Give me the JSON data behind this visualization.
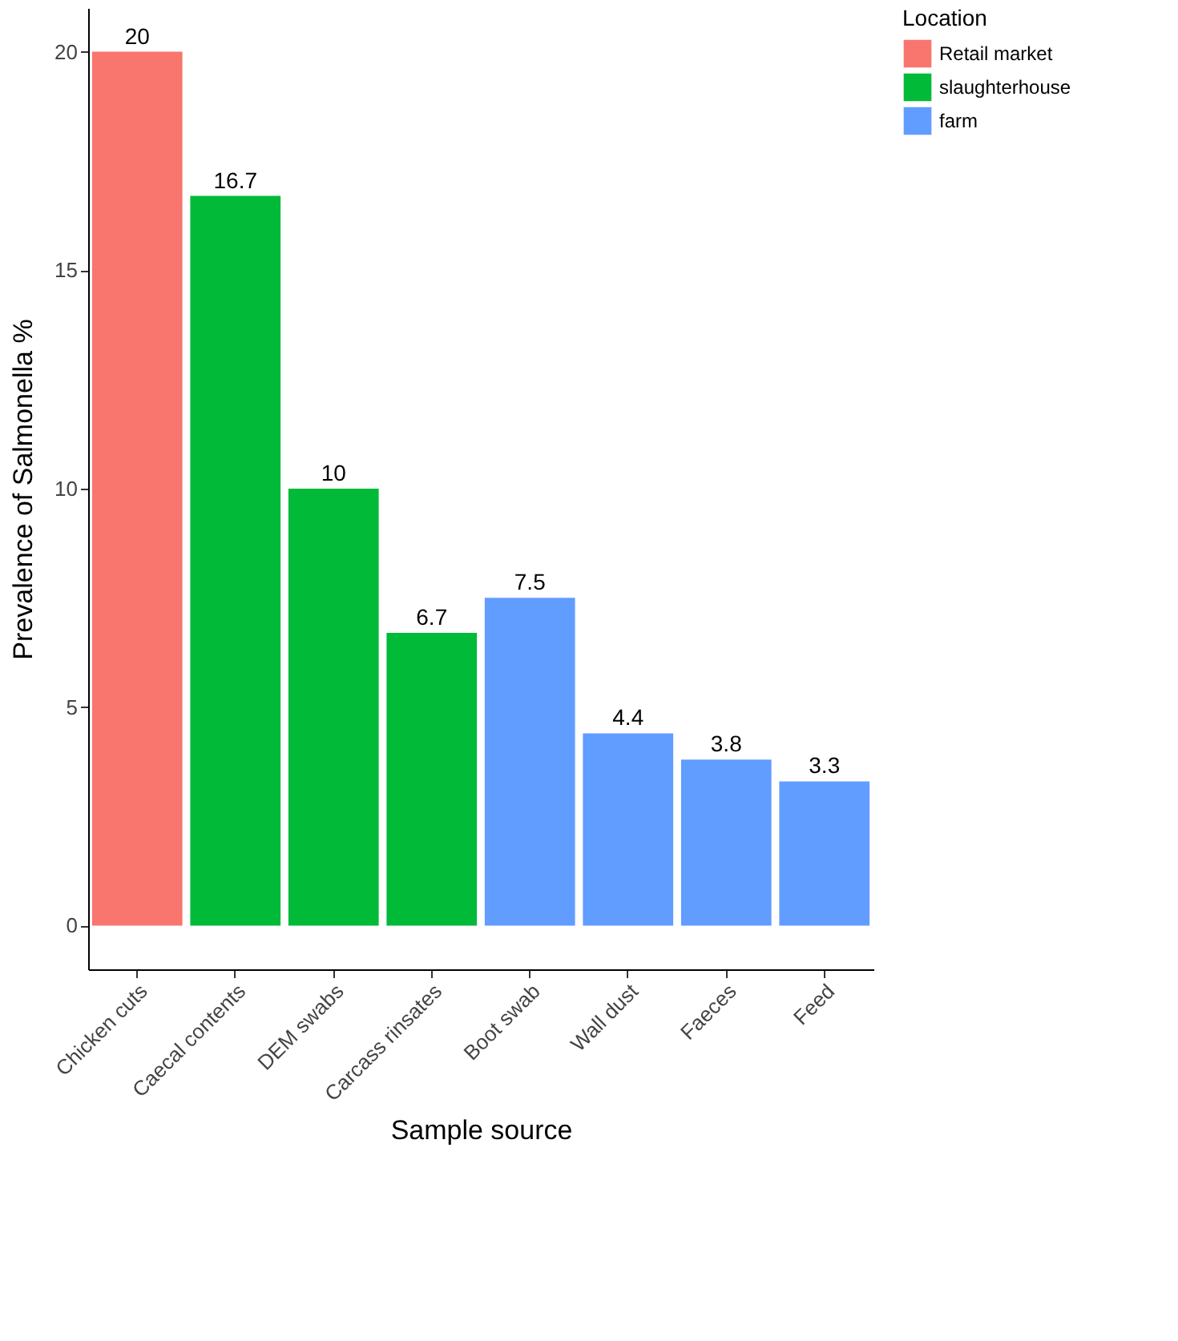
{
  "chart_data": {
    "type": "bar",
    "xlabel": "Sample source",
    "ylabel": "Prevalence of Salmonella %",
    "legend_title": "Location",
    "categories": [
      "Chicken cuts",
      "Caecal contents",
      "DEM swabs",
      "Carcass rinsates",
      "Boot swab",
      "Wall dust",
      "Faeces",
      "Feed"
    ],
    "series": [
      {
        "name": "Retail market",
        "color": "#f8766d",
        "values": [
          20,
          null,
          null,
          null,
          null,
          null,
          null,
          null
        ]
      },
      {
        "name": "slaughterhouse",
        "color": "#00ba38",
        "values": [
          null,
          16.7,
          10,
          6.7,
          null,
          null,
          null,
          null
        ]
      },
      {
        "name": "farm",
        "color": "#619cff",
        "values": [
          null,
          null,
          null,
          null,
          7.5,
          4.4,
          3.8,
          3.3
        ]
      }
    ],
    "ylim": [
      -1,
      21
    ],
    "yticks": [
      0,
      5,
      10,
      15,
      20
    ],
    "grid": false,
    "legend": "right",
    "data_labels": true
  }
}
